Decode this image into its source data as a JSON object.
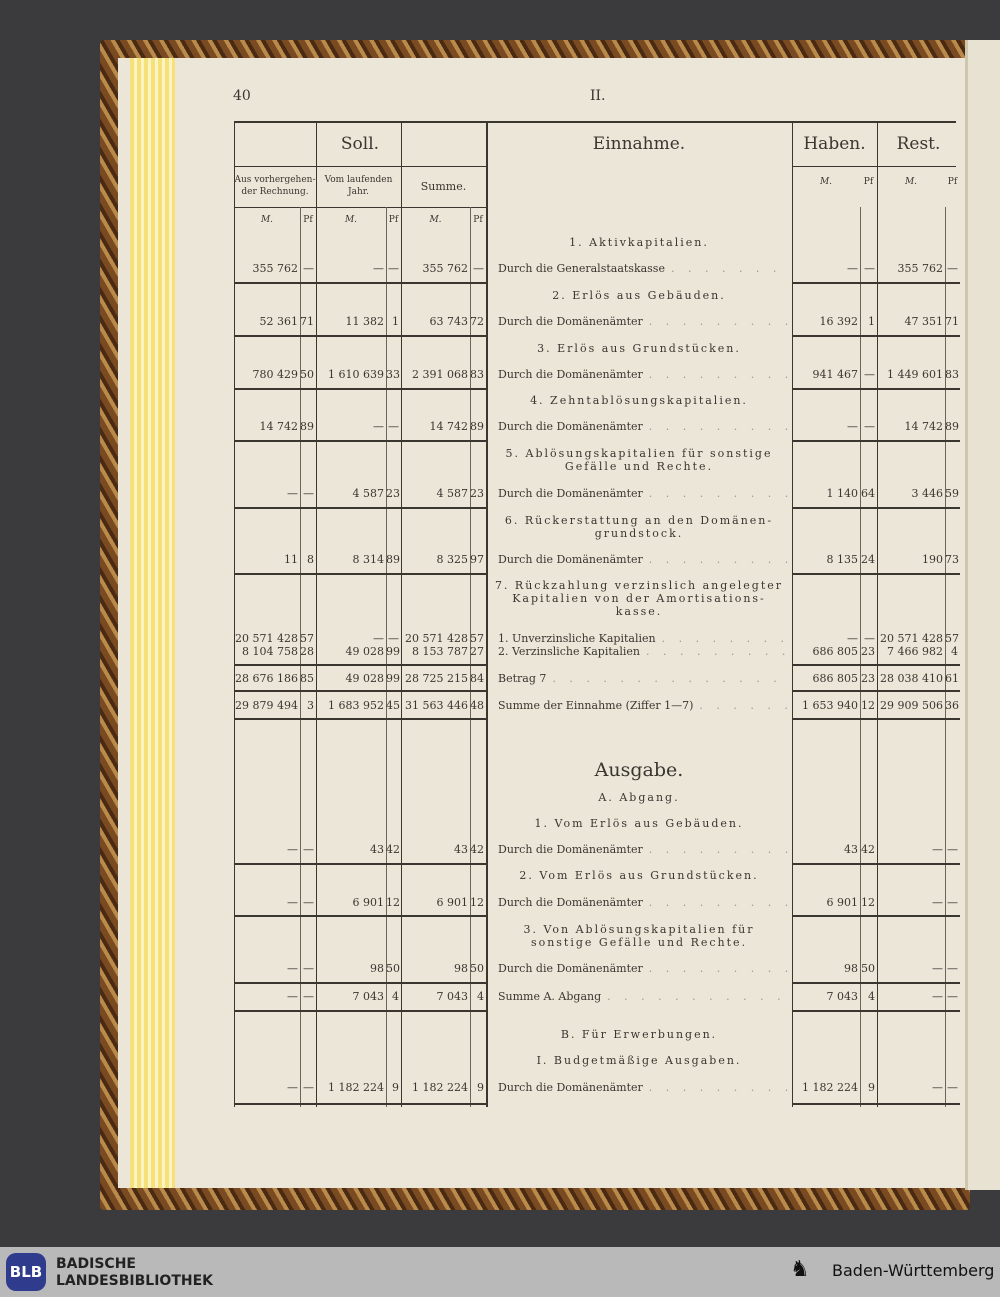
{
  "page": {
    "number": "40",
    "section": "II."
  },
  "headers": {
    "soll": "Soll.",
    "einnahme": "Einnahme.",
    "haben": "Haben.",
    "rest": "Rest.",
    "col1": "Aus vorhergehen-der Rechnung.",
    "col2": "Vom laufenden Jahr.",
    "col3": "Summe.",
    "mark": "M.",
    "pf": "Pf"
  },
  "rows": [
    {
      "k": "h",
      "text": "1. Aktivkapitalien."
    },
    {
      "k": "e",
      "text": "Durch die Generalstaatskasse",
      "v": [
        "355 762",
        "—",
        "—",
        "—",
        "355 762",
        "—",
        "—",
        "—",
        "355 762",
        "—"
      ]
    },
    {
      "k": "h",
      "text": "2. Erlös aus Gebäuden."
    },
    {
      "k": "e",
      "text": "Durch die Domänenämter",
      "v": [
        "52 361",
        "71",
        "11 382",
        "1",
        "63 743",
        "72",
        "16 392",
        "1",
        "47 351",
        "71"
      ]
    },
    {
      "k": "h",
      "text": "3. Erlös aus Grundstücken."
    },
    {
      "k": "e",
      "text": "Durch die Domänenämter",
      "v": [
        "780 429",
        "50",
        "1 610 639",
        "33",
        "2 391 068",
        "83",
        "941 467",
        "—",
        "1 449 601",
        "83"
      ]
    },
    {
      "k": "h",
      "text": "4. Zehntablösungskapitalien."
    },
    {
      "k": "e",
      "text": "Durch die Domänenämter",
      "v": [
        "14 742",
        "89",
        "—",
        "—",
        "14 742",
        "89",
        "—",
        "—",
        "14 742",
        "89"
      ]
    },
    {
      "k": "h",
      "text": "5. Ablösungskapitalien für sonstige Gefälle und Rechte."
    },
    {
      "k": "e",
      "text": "Durch die Domänenämter",
      "v": [
        "—",
        "—",
        "4 587",
        "23",
        "4 587",
        "23",
        "1 140",
        "64",
        "3 446",
        "59"
      ]
    },
    {
      "k": "h",
      "text": "6. Rückerstattung an den Domänen-grundstock."
    },
    {
      "k": "e",
      "text": "Durch die Domänenämter",
      "v": [
        "11",
        "8",
        "8 314",
        "89",
        "8 325",
        "97",
        "8 135",
        "24",
        "190",
        "73"
      ]
    },
    {
      "k": "h",
      "text": "7. Rückzahlung verzinslich angelegter Kapitalien von der Amortisations-kasse."
    },
    {
      "k": "e",
      "text": "1. Unverzinsliche Kapitalien",
      "v": [
        "20 571 428",
        "57",
        "—",
        "—",
        "20 571 428",
        "57",
        "—",
        "—",
        "20 571 428",
        "57"
      ]
    },
    {
      "k": "e",
      "text": "2. Verzinsliche Kapitalien",
      "v": [
        "8 104 758",
        "28",
        "49 028",
        "99",
        "8 153 787",
        "27",
        "686 805",
        "23",
        "7 466 982",
        "4"
      ]
    },
    {
      "k": "e",
      "text": "Betrag 7",
      "v": [
        "28 676 186",
        "85",
        "49 028",
        "99",
        "28 725 215",
        "84",
        "686 805",
        "23",
        "28 038 410",
        "61"
      ]
    },
    {
      "k": "e",
      "text": "Summe der Einnahme (Ziffer 1—7)",
      "v": [
        "29 879 494",
        "3",
        "1 683 952",
        "45",
        "31 563 446",
        "48",
        "1 653 940",
        "12",
        "29 909 506",
        "36"
      ]
    },
    {
      "k": "title",
      "text": "Ausgabe."
    },
    {
      "k": "h",
      "text": "A. Abgang."
    },
    {
      "k": "h",
      "text": "1. Vom Erlös aus Gebäuden."
    },
    {
      "k": "e",
      "text": "Durch die Domänenämter",
      "v": [
        "—",
        "—",
        "43",
        "42",
        "43",
        "42",
        "43",
        "42",
        "—",
        "—"
      ]
    },
    {
      "k": "h",
      "text": "2. Vom Erlös aus Grundstücken."
    },
    {
      "k": "e",
      "text": "Durch die Domänenämter",
      "v": [
        "—",
        "—",
        "6 901",
        "12",
        "6 901",
        "12",
        "6 901",
        "12",
        "—",
        "—"
      ]
    },
    {
      "k": "h",
      "text": "3. Von Ablösungskapitalien für sonstige Gefälle und Rechte."
    },
    {
      "k": "e",
      "text": "Durch die Domänenämter",
      "v": [
        "—",
        "—",
        "98",
        "50",
        "98",
        "50",
        "98",
        "50",
        "—",
        "—"
      ]
    },
    {
      "k": "e",
      "text": "Summe A. Abgang",
      "v": [
        "—",
        "—",
        "7 043",
        "4",
        "7 043",
        "4",
        "7 043",
        "4",
        "—",
        "—"
      ]
    },
    {
      "k": "h",
      "text": "B. Für Erwerbungen."
    },
    {
      "k": "h",
      "text": "I. Budgetmäßige Ausgaben."
    },
    {
      "k": "e",
      "text": "Durch die Domänenämter",
      "v": [
        "—",
        "—",
        "1 182 224",
        "9",
        "1 182 224",
        "9",
        "1 182 224",
        "9",
        "—",
        "—"
      ]
    }
  ],
  "footer": {
    "logo": "BLB",
    "library_line1": "BADISCHE",
    "library_line2": "LANDESBIBLIOTHEK",
    "state": "Baden-Württemberg"
  }
}
